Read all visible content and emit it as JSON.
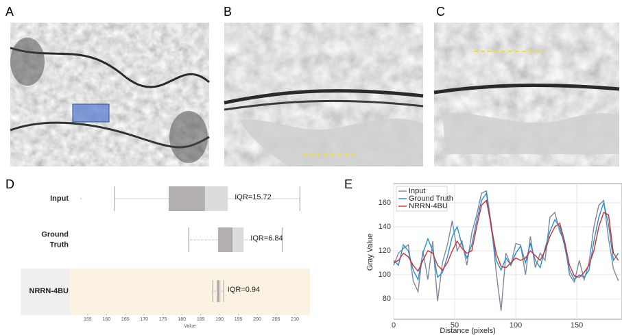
{
  "panel_labels": [
    "A",
    "B",
    "C",
    "D",
    "E"
  ],
  "chart_data": [
    {
      "type": "box",
      "xlabel": "Value",
      "categories": [
        "Input",
        "Ground Truth",
        "NRRN-4BU"
      ],
      "boxes": [
        {
          "whislo": 162.1,
          "q1": 176.5,
          "med": 186.0,
          "q3": 192.2,
          "whishi": 211.3,
          "fliers": [
            153.2
          ],
          "annotation": "IQR=15.72"
        },
        {
          "whislo": 181.8,
          "q1": 189.6,
          "med": 193.3,
          "q3": 196.4,
          "whishi": 206.6,
          "annotation": "IQR=6.84"
        },
        {
          "whislo": 188.2,
          "q1": 189.3,
          "med": 189.8,
          "q3": 190.3,
          "whishi": 191.1,
          "annotation": "IQR=0.94"
        }
      ],
      "highlight_index": 2,
      "xlim": [
        150.3,
        214
      ],
      "xticks": [
        155,
        160,
        165,
        170,
        175,
        180,
        185,
        190,
        195,
        200,
        205,
        210
      ]
    },
    {
      "type": "line",
      "xlabel": "Distance (pixels)",
      "ylabel": "Gray Value",
      "grid": true,
      "legend": "upper-left",
      "x": [
        0,
        4,
        8,
        12,
        16,
        20,
        24,
        28,
        32,
        36,
        40,
        44,
        48,
        52,
        56,
        60,
        64,
        68,
        72,
        76,
        80,
        84,
        88,
        92,
        96,
        100,
        104,
        108,
        112,
        116,
        120,
        124,
        128,
        132,
        136,
        140,
        144,
        148,
        152,
        156,
        160,
        164,
        168,
        172,
        176,
        180,
        184
      ],
      "series": [
        {
          "name": "Input",
          "color": "#7d8797",
          "values": [
            108,
            118,
            122,
            125,
            95,
            86,
            120,
            96,
            128,
            78,
            110,
            125,
            145,
            120,
            128,
            108,
            135,
            150,
            168,
            170,
            142,
            102,
            70,
            118,
            108,
            126,
            125,
            100,
            132,
            106,
            118,
            112,
            148,
            152,
            136,
            128,
            100,
            94,
            112,
            96,
            110,
            140,
            158,
            162,
            130,
            105,
            95
          ]
        },
        {
          "name": "Ground Truth",
          "color": "#1e8fd2",
          "values": [
            112,
            108,
            125,
            120,
            104,
            96,
            118,
            130,
            120,
            98,
            102,
            115,
            132,
            140,
            125,
            114,
            125,
            145,
            162,
            168,
            138,
            112,
            104,
            114,
            108,
            118,
            124,
            110,
            126,
            112,
            106,
            122,
            136,
            146,
            140,
            124,
            104,
            96,
            100,
            98,
            104,
            128,
            148,
            160,
            142,
            112,
            118
          ]
        },
        {
          "name": "NRRN-4BU",
          "color": "#d42a2a",
          "values": [
            110,
            112,
            118,
            115,
            108,
            103,
            112,
            120,
            118,
            108,
            104,
            110,
            120,
            128,
            122,
            118,
            120,
            140,
            158,
            162,
            140,
            118,
            107,
            106,
            110,
            114,
            112,
            114,
            120,
            116,
            112,
            120,
            132,
            140,
            143,
            128,
            108,
            99,
            98,
            102,
            108,
            120,
            140,
            152,
            150,
            118,
            112
          ]
        }
      ],
      "xlim": [
        0,
        187
      ],
      "ylim": [
        63,
        176
      ],
      "xticks": [
        0,
        50,
        100,
        150
      ],
      "yticks": [
        80,
        100,
        120,
        140,
        160
      ]
    }
  ]
}
